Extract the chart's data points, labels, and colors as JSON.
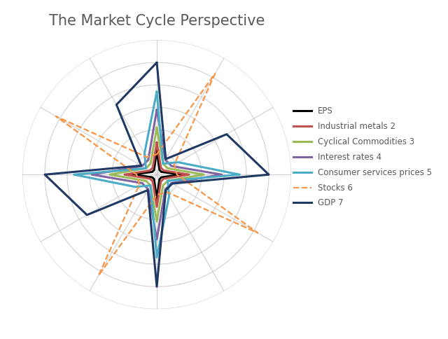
{
  "title": "The Market Cycle Perspective",
  "title_fontsize": 15,
  "title_color": "#595959",
  "num_vars": 12,
  "series": [
    {
      "label": "EPS",
      "color": "#000000",
      "linestyle": "solid",
      "linewidth": 2.2,
      "values": [
        0.55,
        0.12,
        0.12,
        0.55,
        0.12,
        0.12,
        0.55,
        0.12,
        0.12,
        0.55,
        0.12,
        0.12
      ]
    },
    {
      "label": "Industrial metals 2",
      "color": "#C0504D",
      "linestyle": "solid",
      "linewidth": 2.2,
      "values": [
        0.72,
        0.18,
        0.18,
        0.72,
        0.18,
        0.18,
        0.72,
        0.18,
        0.18,
        0.72,
        0.18,
        0.18
      ]
    },
    {
      "label": "Cyclical Commodities 3",
      "color": "#9BBB59",
      "linestyle": "solid",
      "linewidth": 2.2,
      "values": [
        1.05,
        0.28,
        0.28,
        1.05,
        0.28,
        0.28,
        1.05,
        0.28,
        0.28,
        1.05,
        0.28,
        0.28
      ]
    },
    {
      "label": "Interest rates 4",
      "color": "#8064A2",
      "linestyle": "solid",
      "linewidth": 2.2,
      "values": [
        1.45,
        0.38,
        0.38,
        1.45,
        0.38,
        0.38,
        1.45,
        0.38,
        0.38,
        1.45,
        0.38,
        0.38
      ]
    },
    {
      "label": "Consumer services prices 5",
      "color": "#4BACC6",
      "linestyle": "solid",
      "linewidth": 2.2,
      "values": [
        1.85,
        0.28,
        0.55,
        1.85,
        0.28,
        0.55,
        1.85,
        0.28,
        0.55,
        1.85,
        0.28,
        0.55
      ]
    },
    {
      "label": "Stocks 6",
      "color": "#F79646",
      "linestyle": "dashed",
      "linewidth": 1.6,
      "values": [
        0.45,
        2.6,
        0.45,
        0.45,
        2.6,
        0.45,
        0.45,
        2.6,
        0.45,
        0.45,
        2.6,
        0.45
      ]
    },
    {
      "label": "GDP 7",
      "color": "#1F3864",
      "linestyle": "solid",
      "linewidth": 2.2,
      "values": [
        2.5,
        0.4,
        1.8,
        2.5,
        0.4,
        0.4,
        2.5,
        0.4,
        1.8,
        2.5,
        0.4,
        1.8
      ]
    }
  ],
  "rmax": 3.0,
  "grid_levels": [
    0.5,
    1.0,
    1.5,
    2.0,
    2.5,
    3.0
  ],
  "grid_color": "#cccccc",
  "spoke_color": "#cccccc"
}
